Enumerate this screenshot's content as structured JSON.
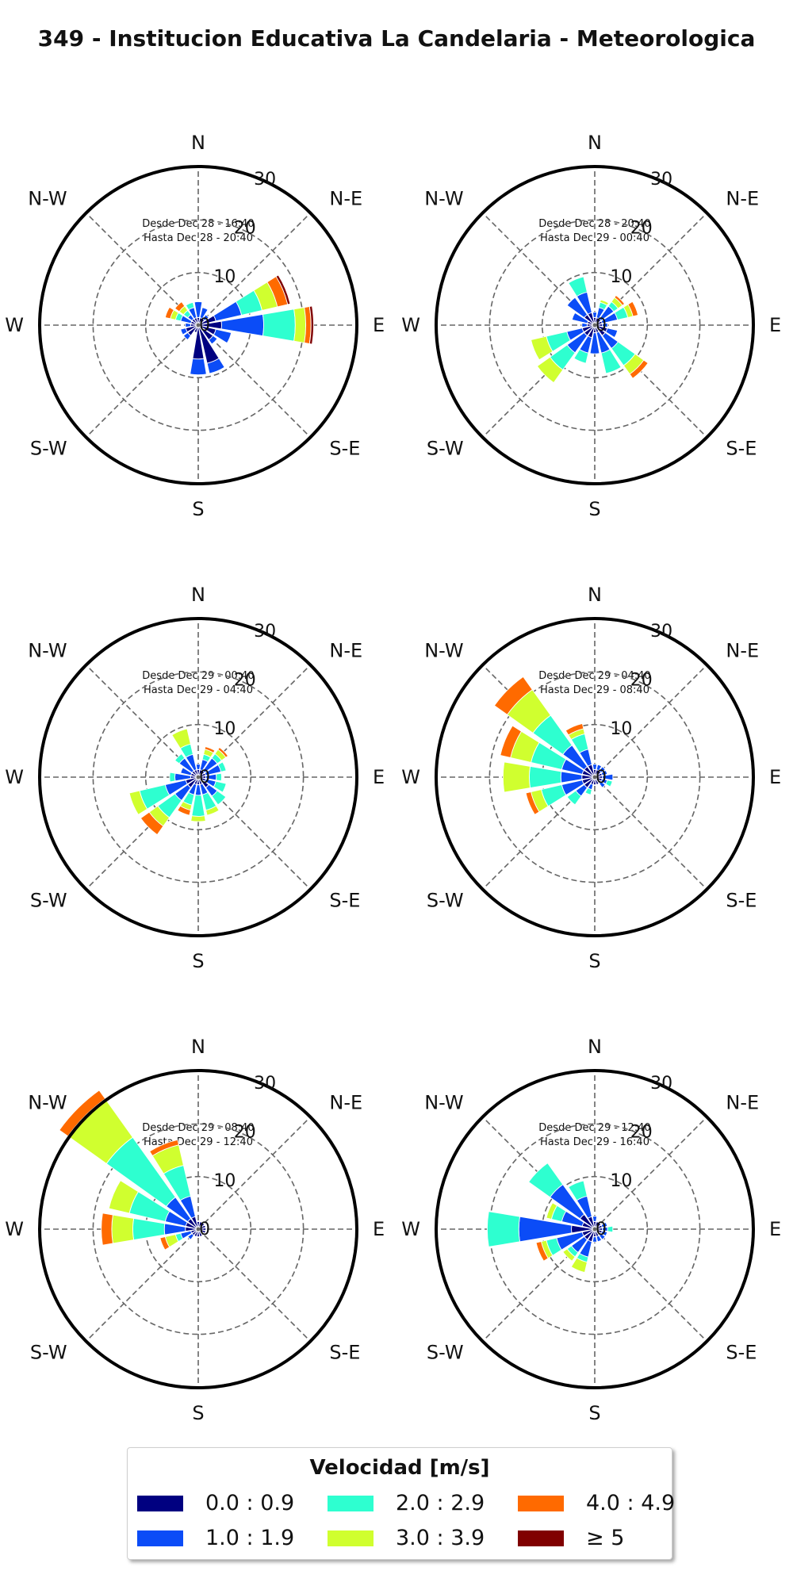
{
  "title": "349 - Institucion Educativa La Candelaria - Meteorologica",
  "colors": [
    "#000080",
    "#0b4cf7",
    "#2effd0",
    "#d0ff2f",
    "#ff6a00",
    "#800000"
  ],
  "legend": {
    "title": "Velocidad [m/s]",
    "items": [
      {
        "label": "0.0 : 0.9",
        "color": "#000080"
      },
      {
        "label": "1.0 : 1.9",
        "color": "#0b4cf7"
      },
      {
        "label": "2.0 : 2.9",
        "color": "#2effd0"
      },
      {
        "label": "3.0 : 3.9",
        "color": "#d0ff2f"
      },
      {
        "label": "4.0 : 4.9",
        "color": "#ff6a00"
      },
      {
        "label": "≥  5",
        "color": "#800000"
      }
    ]
  },
  "chart_data": [
    {
      "type": "windrose",
      "line1": "Desde Dec 28 - 16:40",
      "line2": "Hasta Dec 28 - 20:40",
      "directions": [
        "N",
        "N-E",
        "E",
        "S-E",
        "S",
        "S-W",
        "W",
        "N-W"
      ],
      "radial_ticks": [
        "0",
        "10",
        "20",
        "30"
      ],
      "rmax": 30,
      "bars": [
        {
          "dir": 0,
          "values": [
            1,
            3,
            0,
            0,
            0,
            0
          ]
        },
        {
          "dir": 22.5,
          "values": [
            1,
            2,
            0,
            0,
            0,
            0
          ]
        },
        {
          "dir": 45,
          "values": [
            1,
            1,
            0,
            0,
            0,
            0
          ]
        },
        {
          "dir": 67.5,
          "values": [
            3,
            5,
            4,
            3,
            2,
            0.5
          ]
        },
        {
          "dir": 90,
          "values": [
            4,
            8,
            6,
            2,
            1,
            0.5
          ]
        },
        {
          "dir": 112.5,
          "values": [
            3,
            3,
            0,
            0,
            0,
            0
          ]
        },
        {
          "dir": 135,
          "values": [
            3,
            1,
            0,
            0,
            0,
            0
          ]
        },
        {
          "dir": 157.5,
          "values": [
            7,
            2,
            0,
            0,
            0,
            0
          ]
        },
        {
          "dir": 180,
          "values": [
            6,
            3,
            0,
            0,
            0,
            0
          ]
        },
        {
          "dir": 202.5,
          "values": [
            1,
            0,
            0,
            0,
            0,
            0
          ]
        },
        {
          "dir": 225,
          "values": [
            2,
            1,
            0,
            0,
            0,
            0
          ]
        },
        {
          "dir": 247.5,
          "values": [
            2,
            1,
            0,
            0,
            0,
            0
          ]
        },
        {
          "dir": 270,
          "values": [
            1,
            1,
            0,
            0,
            0,
            0
          ]
        },
        {
          "dir": 292.5,
          "values": [
            1,
            2,
            1,
            1,
            1,
            0
          ]
        },
        {
          "dir": 315,
          "values": [
            1,
            1,
            1,
            1,
            1,
            0
          ]
        },
        {
          "dir": 337.5,
          "values": [
            1,
            2,
            1,
            0,
            0,
            0
          ]
        }
      ]
    },
    {
      "type": "windrose",
      "line1": "Desde Dec 28 - 20:40",
      "line2": "Hasta Dec 29 - 00:40",
      "directions": [
        "N",
        "N-E",
        "E",
        "S-E",
        "S",
        "S-W",
        "W",
        "N-W"
      ],
      "radial_ticks": [
        "0",
        "10",
        "20",
        "30"
      ],
      "rmax": 30,
      "bars": [
        {
          "dir": 0,
          "values": [
            1,
            1,
            0,
            0,
            0,
            0
          ]
        },
        {
          "dir": 22.5,
          "values": [
            1,
            2,
            1,
            0.5,
            0,
            0
          ]
        },
        {
          "dir": 45,
          "values": [
            1,
            3,
            1,
            1,
            0.5,
            0
          ]
        },
        {
          "dir": 67.5,
          "values": [
            1,
            3,
            2,
            1,
            1,
            0
          ]
        },
        {
          "dir": 90,
          "values": [
            1,
            1,
            0,
            0,
            0,
            0
          ]
        },
        {
          "dir": 112.5,
          "values": [
            2,
            2,
            0,
            0,
            0,
            0
          ]
        },
        {
          "dir": 135,
          "values": [
            2,
            3,
            4,
            2,
            1,
            0
          ]
        },
        {
          "dir": 157.5,
          "values": [
            1,
            4,
            4,
            0,
            0,
            0
          ]
        },
        {
          "dir": 180,
          "values": [
            1,
            4,
            0,
            0,
            0,
            0
          ]
        },
        {
          "dir": 202.5,
          "values": [
            2,
            3,
            2,
            0,
            0,
            0
          ]
        },
        {
          "dir": 225,
          "values": [
            2,
            4,
            4,
            3,
            0,
            0
          ]
        },
        {
          "dir": 247.5,
          "values": [
            2,
            3,
            4,
            3,
            0,
            0
          ]
        },
        {
          "dir": 270,
          "values": [
            1,
            1,
            0,
            0,
            0,
            0
          ]
        },
        {
          "dir": 292.5,
          "values": [
            1,
            3,
            0,
            0,
            0,
            0
          ]
        },
        {
          "dir": 315,
          "values": [
            2,
            4,
            0,
            0,
            0,
            0
          ]
        },
        {
          "dir": 337.5,
          "values": [
            2,
            4,
            3,
            0,
            0,
            0
          ]
        }
      ]
    },
    {
      "type": "windrose",
      "line1": "Desde Dec 29 - 00:40",
      "line2": "Hasta Dec 29 - 04:40",
      "directions": [
        "N",
        "N-E",
        "E",
        "S-E",
        "S",
        "S-W",
        "W",
        "N-W"
      ],
      "radial_ticks": [
        "0",
        "10",
        "20",
        "30"
      ],
      "rmax": 30,
      "bars": [
        {
          "dir": 0,
          "values": [
            1,
            1,
            0,
            0,
            0,
            0
          ]
        },
        {
          "dir": 22.5,
          "values": [
            1,
            2,
            1,
            1,
            0.5,
            0
          ]
        },
        {
          "dir": 45,
          "values": [
            1,
            3,
            1,
            1,
            0.5,
            0
          ]
        },
        {
          "dir": 67.5,
          "values": [
            1,
            3,
            1,
            0,
            0,
            0
          ]
        },
        {
          "dir": 90,
          "values": [
            1,
            2,
            1,
            0,
            0,
            0
          ]
        },
        {
          "dir": 112.5,
          "values": [
            1,
            2,
            2,
            0,
            0,
            0
          ]
        },
        {
          "dir": 135,
          "values": [
            2,
            2,
            2,
            0,
            0,
            0
          ]
        },
        {
          "dir": 157.5,
          "values": [
            1,
            2,
            3,
            1,
            0,
            0
          ]
        },
        {
          "dir": 180,
          "values": [
            1,
            2,
            4,
            1,
            0,
            0
          ]
        },
        {
          "dir": 202.5,
          "values": [
            1,
            2,
            2,
            1,
            1,
            0
          ]
        },
        {
          "dir": 225,
          "values": [
            2,
            3,
            4,
            2,
            2,
            0
          ]
        },
        {
          "dir": 247.5,
          "values": [
            2,
            4,
            5,
            2,
            0,
            0
          ]
        },
        {
          "dir": 270,
          "values": [
            1,
            3,
            1,
            0,
            0,
            0
          ]
        },
        {
          "dir": 292.5,
          "values": [
            1,
            2,
            0,
            0,
            0,
            0
          ]
        },
        {
          "dir": 315,
          "values": [
            1,
            3,
            1,
            0,
            0,
            0
          ]
        },
        {
          "dir": 337.5,
          "values": [
            1,
            3,
            2,
            3,
            0,
            0
          ]
        }
      ]
    },
    {
      "type": "windrose",
      "line1": "Desde Dec 29 - 04:40",
      "line2": "Hasta Dec 29 - 08:40",
      "directions": [
        "N",
        "N-E",
        "E",
        "S-E",
        "S",
        "S-W",
        "W",
        "N-W"
      ],
      "radial_ticks": [
        "0",
        "10",
        "20",
        "30"
      ],
      "rmax": 30,
      "bars": [
        {
          "dir": 0,
          "values": [
            1,
            1,
            0,
            0,
            0,
            0
          ]
        },
        {
          "dir": 22.5,
          "values": [
            1,
            1,
            0,
            0,
            0,
            0
          ]
        },
        {
          "dir": 45,
          "values": [
            1,
            1,
            0,
            0,
            0,
            0
          ]
        },
        {
          "dir": 67.5,
          "values": [
            1,
            1,
            0,
            0,
            0,
            0
          ]
        },
        {
          "dir": 90,
          "values": [
            1,
            2,
            0,
            0,
            0,
            0
          ]
        },
        {
          "dir": 112.5,
          "values": [
            1,
            1,
            1,
            0,
            0,
            0
          ]
        },
        {
          "dir": 135,
          "values": [
            1,
            1,
            0,
            0,
            0,
            0
          ]
        },
        {
          "dir": 157.5,
          "values": [
            1,
            0,
            0,
            0,
            0,
            0
          ]
        },
        {
          "dir": 180,
          "values": [
            1,
            0,
            0,
            0,
            0,
            0
          ]
        },
        {
          "dir": 202.5,
          "values": [
            1,
            1,
            1,
            0,
            0,
            0
          ]
        },
        {
          "dir": 225,
          "values": [
            2,
            2,
            2,
            0,
            0,
            0
          ]
        },
        {
          "dir": 247.5,
          "values": [
            2,
            4,
            4,
            2,
            1,
            0
          ]
        },
        {
          "dir": 270,
          "values": [
            2,
            4,
            6,
            5,
            0,
            0
          ]
        },
        {
          "dir": 292.5,
          "values": [
            2,
            4,
            6,
            4,
            2,
            0
          ]
        },
        {
          "dir": 315,
          "values": [
            2,
            5,
            7,
            6,
            3,
            0
          ]
        },
        {
          "dir": 337.5,
          "values": [
            2,
            3,
            3,
            1,
            1,
            0
          ]
        }
      ]
    },
    {
      "type": "windrose",
      "line1": "Desde Dec 29 - 08:40",
      "line2": "Hasta Dec 29 - 12:40",
      "directions": [
        "N",
        "N-E",
        "E",
        "S-E",
        "S",
        "S-W",
        "W",
        "N-W"
      ],
      "radial_ticks": [
        "0",
        "10",
        "20",
        "30"
      ],
      "rmax": 30,
      "bars": [
        {
          "dir": 0,
          "values": [
            1,
            0,
            0,
            0,
            0,
            0
          ]
        },
        {
          "dir": 22.5,
          "values": [
            1,
            0,
            0,
            0,
            0,
            0
          ]
        },
        {
          "dir": 45,
          "values": [
            1,
            0,
            0,
            0,
            0,
            0
          ]
        },
        {
          "dir": 67.5,
          "values": [
            1,
            0,
            0,
            0,
            0,
            0
          ]
        },
        {
          "dir": 90,
          "values": [
            1,
            0,
            0,
            0,
            0,
            0
          ]
        },
        {
          "dir": 112.5,
          "values": [
            1,
            0,
            0,
            0,
            0,
            0
          ]
        },
        {
          "dir": 135,
          "values": [
            1,
            0,
            0,
            0,
            0,
            0
          ]
        },
        {
          "dir": 157.5,
          "values": [
            1,
            0,
            0,
            0,
            0,
            0
          ]
        },
        {
          "dir": 180,
          "values": [
            1,
            0,
            0,
            0,
            0,
            0
          ]
        },
        {
          "dir": 202.5,
          "values": [
            1,
            0,
            0,
            0,
            0,
            0
          ]
        },
        {
          "dir": 225,
          "values": [
            1,
            1,
            0,
            0,
            0,
            0
          ]
        },
        {
          "dir": 247.5,
          "values": [
            1,
            2,
            1,
            2,
            1,
            0
          ]
        },
        {
          "dir": 270,
          "values": [
            2,
            4,
            6,
            4,
            2,
            0
          ]
        },
        {
          "dir": 292.5,
          "values": [
            2,
            4,
            7,
            4,
            0,
            0
          ]
        },
        {
          "dir": 315,
          "values": [
            2,
            5,
            14,
            9,
            2,
            0
          ]
        },
        {
          "dir": 337.5,
          "values": [
            2,
            4,
            6,
            4,
            1,
            0
          ]
        }
      ]
    },
    {
      "type": "windrose",
      "line1": "Desde Dec 29 - 12:40",
      "line2": "Hasta Dec 29 - 16:40",
      "directions": [
        "N",
        "N-E",
        "E",
        "S-E",
        "S",
        "S-W",
        "W",
        "N-W"
      ],
      "radial_ticks": [
        "0",
        "10",
        "20",
        "30"
      ],
      "rmax": 30,
      "bars": [
        {
          "dir": 0,
          "values": [
            1,
            1,
            0,
            0,
            0,
            0
          ]
        },
        {
          "dir": 22.5,
          "values": [
            1,
            0,
            0,
            0,
            0,
            0
          ]
        },
        {
          "dir": 45,
          "values": [
            1,
            0,
            0,
            0,
            0,
            0
          ]
        },
        {
          "dir": 67.5,
          "values": [
            1,
            1,
            0,
            0,
            0,
            0
          ]
        },
        {
          "dir": 90,
          "values": [
            1,
            1,
            1,
            0,
            0,
            0
          ]
        },
        {
          "dir": 112.5,
          "values": [
            1,
            1,
            0,
            0,
            0,
            0
          ]
        },
        {
          "dir": 135,
          "values": [
            1,
            1,
            0,
            0,
            0,
            0
          ]
        },
        {
          "dir": 157.5,
          "values": [
            1,
            1,
            0,
            0,
            0,
            0
          ]
        },
        {
          "dir": 180,
          "values": [
            1,
            1,
            0,
            0,
            0,
            0
          ]
        },
        {
          "dir": 202.5,
          "values": [
            2,
            3,
            1,
            2,
            0,
            0
          ]
        },
        {
          "dir": 225,
          "values": [
            2,
            3,
            1,
            1,
            0,
            0
          ]
        },
        {
          "dir": 247.5,
          "values": [
            2,
            5,
            2,
            1,
            1,
            0
          ]
        },
        {
          "dir": 270,
          "values": [
            4,
            10,
            6,
            0,
            0,
            0
          ]
        },
        {
          "dir": 292.5,
          "values": [
            2,
            4,
            2,
            1,
            0,
            0
          ]
        },
        {
          "dir": 315,
          "values": [
            3,
            7,
            5,
            0,
            0,
            0
          ]
        },
        {
          "dir": 337.5,
          "values": [
            2,
            4,
            3,
            0,
            0,
            0
          ]
        }
      ]
    }
  ]
}
